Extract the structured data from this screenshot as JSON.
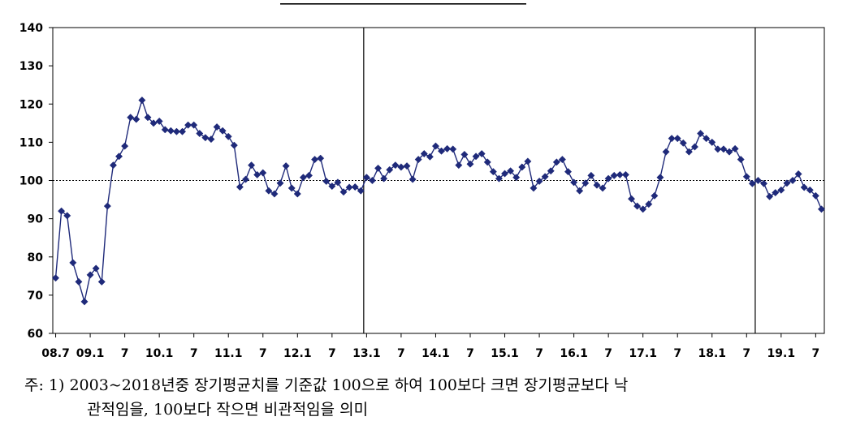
{
  "chart_data": {
    "type": "line",
    "ylim": [
      60,
      140
    ],
    "yticks": [
      60,
      70,
      80,
      90,
      100,
      110,
      120,
      130,
      140
    ],
    "reference_line": 100,
    "x_tick_labels": [
      "08.7",
      "09.1",
      "7",
      "10.1",
      "7",
      "11.1",
      "7",
      "12.1",
      "7",
      "13.1",
      "7",
      "14.1",
      "7",
      "15.1",
      "7",
      "16.1",
      "7",
      "17.1",
      "7",
      "18.1",
      "7",
      "19.1",
      "7"
    ],
    "x_start": "08.7",
    "x_end": "19.8",
    "vertical_markers": [
      "13.1",
      "18.9"
    ],
    "series": [
      {
        "color": "#1f2a7a",
        "marker": "diamond",
        "values": [
          74.5,
          92,
          90.8,
          78.5,
          73.5,
          68.3,
          75.3,
          77,
          73.5,
          93.3,
          104,
          106.3,
          109,
          116.5,
          116,
          121,
          116.5,
          115,
          115.5,
          113.3,
          113,
          112.8,
          112.8,
          114.5,
          114.5,
          112.3,
          111.2,
          110.8,
          114,
          113,
          111.5,
          109.2,
          98.3,
          100.3,
          104,
          101.5,
          102,
          97.3,
          96.5,
          99.3,
          103.8,
          98,
          96.5,
          100.8,
          101.3,
          105.5,
          105.8,
          99.8,
          98.5,
          99.5,
          97,
          98.2,
          98.3,
          97.3,
          100.8,
          100,
          103.2,
          100.5,
          102.8,
          104,
          103.5,
          103.8,
          100.3,
          105.5,
          107,
          106.2,
          109,
          107.7,
          108.3,
          108.2,
          104,
          106.8,
          104.3,
          106.3,
          107,
          104.8,
          102.3,
          100.5,
          101.8,
          102.5,
          100.8,
          103.5,
          105,
          98,
          99.8,
          101,
          102.5,
          104.8,
          105.5,
          102.3,
          99.5,
          97.3,
          99.3,
          101.3,
          98.8,
          98,
          100.5,
          101.3,
          101.5,
          101.5,
          95.2,
          93.3,
          92.5,
          93.8,
          96,
          100.8,
          107.5,
          111,
          111,
          109.8,
          107.5,
          108.8,
          112.3,
          111,
          110,
          108.2,
          108.2,
          107.5,
          108.3,
          105.5,
          101,
          99.2,
          100,
          99.2,
          95.8,
          96.8,
          97.5,
          99.3,
          100,
          101.7,
          98.2,
          97.5,
          96,
          92.5
        ]
      }
    ]
  },
  "footnote": {
    "line1": "주: 1) 2003~2018년중 장기평균치를 기준값 100으로 하여 100보다 크면 장기평균보다 낙",
    "line2": "관적임을, 100보다 작으면 비관적임을 의미"
  }
}
